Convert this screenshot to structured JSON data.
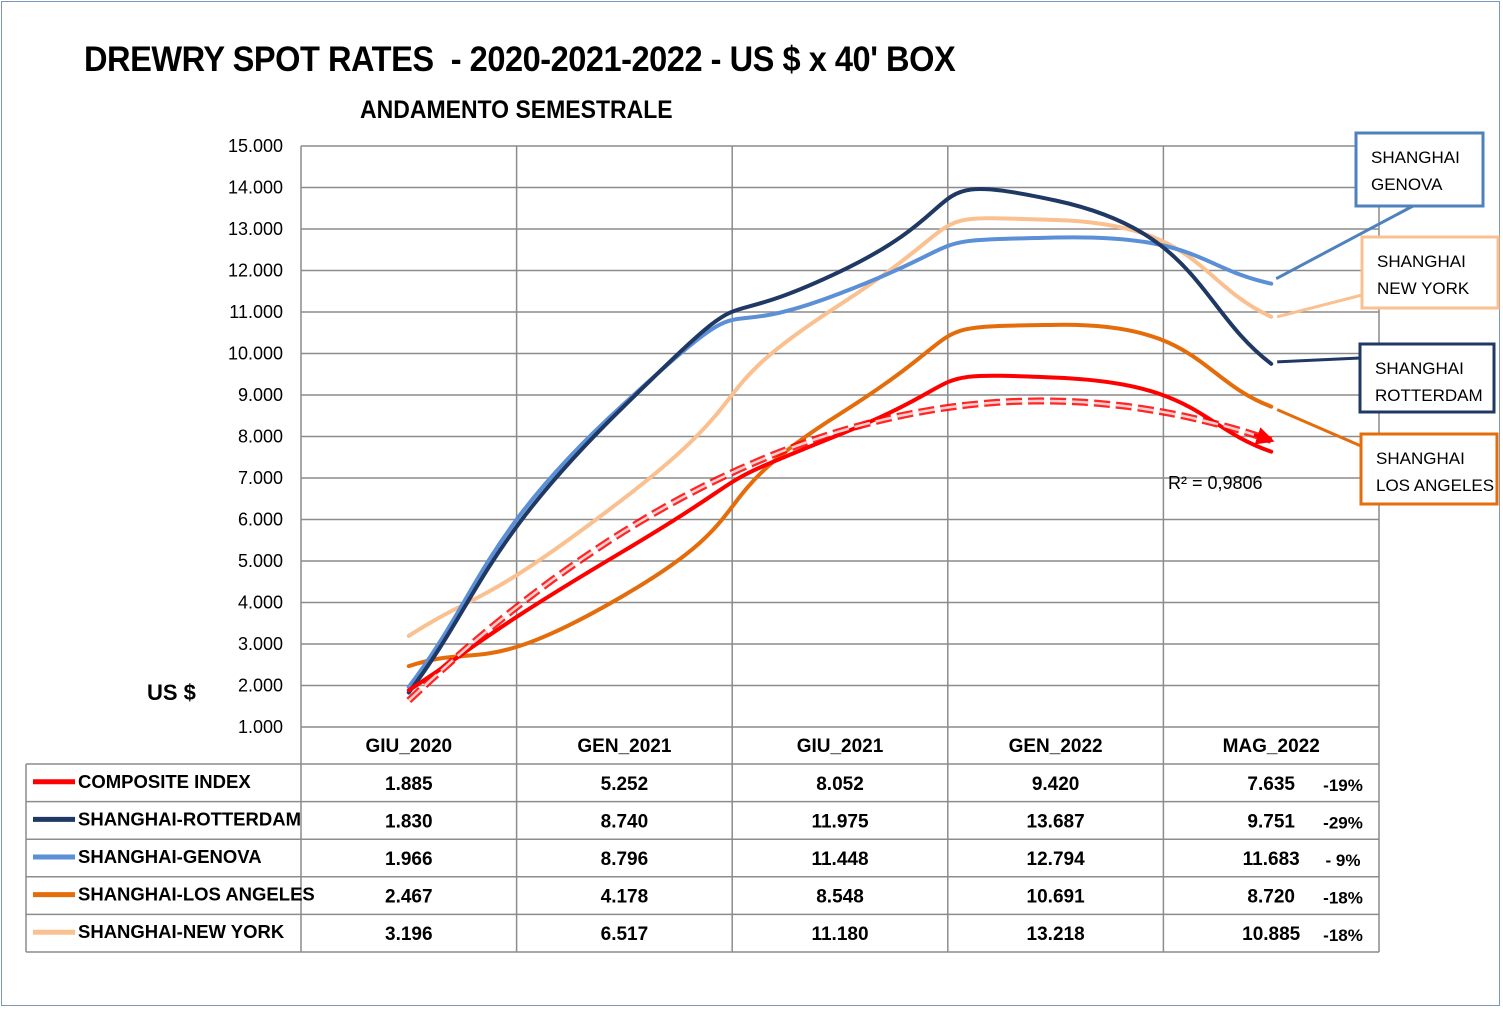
{
  "title": "DREWRY SPOT RATES  - 2020-2021-2022 - US $ x 40' BOX",
  "subtitle": "ANDAMENTO SEMESTRALE",
  "ylabel": "US $",
  "r2_label": "R² = 0,9806",
  "chart_data": {
    "type": "line",
    "title": "DREWRY SPOT RATES  - 2020-2021-2022 - US $ x 40' BOX",
    "subtitle": "ANDAMENTO SEMESTRALE",
    "xlabel": "",
    "ylabel": "US $",
    "ylim": [
      1000,
      15000
    ],
    "y_ticks": [
      "1.000",
      "2.000",
      "3.000",
      "4.000",
      "5.000",
      "6.000",
      "7.000",
      "8.000",
      "9.000",
      "10.000",
      "11.000",
      "12.000",
      "13.000",
      "14.000",
      "15.000"
    ],
    "grid": true,
    "categories": [
      "GIU_2020",
      "GEN_2021",
      "GIU_2021",
      "GEN_2022",
      "MAG_2022"
    ],
    "series": [
      {
        "name": "COMPOSITE INDEX",
        "color": "#ff0000",
        "values": [
          1885,
          5252,
          8052,
          9420,
          7635
        ],
        "display": [
          "1.885",
          "5.252",
          "8.052",
          "9.420",
          "7.635"
        ],
        "change": "-19%"
      },
      {
        "name": "SHANGHAI-ROTTERDAM",
        "color": "#1f3864",
        "values": [
          1830,
          8740,
          11975,
          13687,
          9751
        ],
        "display": [
          "1.830",
          "8.740",
          "11.975",
          "13.687",
          "9.751"
        ],
        "change": "-29%"
      },
      {
        "name": "SHANGHAI-GENOVA",
        "color": "#5b8fd6",
        "values": [
          1966,
          8796,
          11448,
          12794,
          11683
        ],
        "display": [
          "1.966",
          "8.796",
          "11.448",
          "12.794",
          "11.683"
        ],
        "change": "-  9%"
      },
      {
        "name": "SHANGHAI-LOS ANGELES",
        "color": "#e46c0a",
        "values": [
          2467,
          4178,
          8548,
          10691,
          8720
        ],
        "display": [
          "2.467",
          "4.178",
          "8.548",
          "10.691",
          "8.720"
        ],
        "change": "-18%"
      },
      {
        "name": "SHANGHAI-NEW YORK",
        "color": "#fac090",
        "values": [
          3196,
          6517,
          11180,
          13218,
          10885
        ],
        "display": [
          "3.196",
          "6.517",
          "11.180",
          "13.218",
          "10.885"
        ],
        "change": "-18%"
      }
    ],
    "trendline": {
      "series": "COMPOSITE INDEX",
      "type": "polynomial",
      "r2": "R² = 0,9806",
      "color": "#ff0000",
      "style": "dashed",
      "arrow": true
    },
    "callouts": [
      {
        "series": "SHANGHAI-GENOVA",
        "lines": [
          "SHANGHAI",
          "GENOVA"
        ],
        "border": "#4f81bd"
      },
      {
        "series": "SHANGHAI-NEW YORK",
        "lines": [
          "SHANGHAI",
          "NEW YORK"
        ],
        "border": "#fac090"
      },
      {
        "series": "SHANGHAI-ROTTERDAM",
        "lines": [
          "SHANGHAI",
          "ROTTERDAM"
        ],
        "border": "#1f3864"
      },
      {
        "series": "SHANGHAI-LOS ANGELES",
        "lines": [
          "SHANGHAI",
          "LOS ANGELES"
        ],
        "border": "#e46c0a"
      }
    ],
    "data_table": true
  }
}
